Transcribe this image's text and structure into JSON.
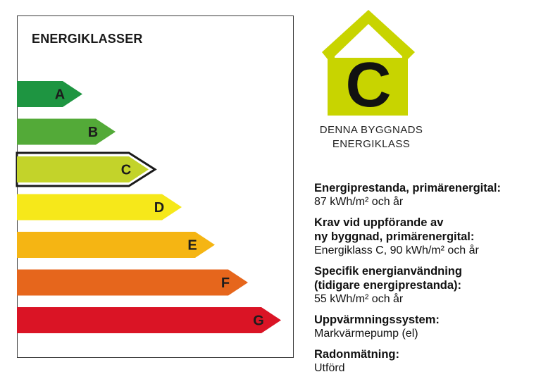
{
  "scale": {
    "title": "ENERGIKLASSER",
    "current_class": "C",
    "classes": [
      {
        "letter": "A",
        "color": "#1e9541"
      },
      {
        "letter": "B",
        "color": "#53aa38"
      },
      {
        "letter": "C",
        "color": "#c3d32a"
      },
      {
        "letter": "D",
        "color": "#f6e81a"
      },
      {
        "letter": "E",
        "color": "#f5b513"
      },
      {
        "letter": "F",
        "color": "#e6661c"
      },
      {
        "letter": "G",
        "color": "#da1425"
      }
    ]
  },
  "badge": {
    "letter": "C",
    "color": "#c8d400",
    "caption_line1": "DENNA BYGGNADS",
    "caption_line2": "ENERGIKLASS"
  },
  "info": [
    {
      "label_lines": [
        "Energiprestanda, primärenergital:"
      ],
      "value": "87 kWh/m² och år"
    },
    {
      "label_lines": [
        "Krav vid uppförande av",
        "ny byggnad, primärenergital:"
      ],
      "value": "Energiklass C, 90 kWh/m² och år"
    },
    {
      "label_lines": [
        "Specifik energianvändning",
        "(tidigare energiprestanda):"
      ],
      "value": "55 kWh/m² och år"
    },
    {
      "label_lines": [
        "Uppvärmningssystem:"
      ],
      "value": "Markvärmepump (el)"
    },
    {
      "label_lines": [
        "Radonmätning:"
      ],
      "value": "Utförd"
    }
  ]
}
